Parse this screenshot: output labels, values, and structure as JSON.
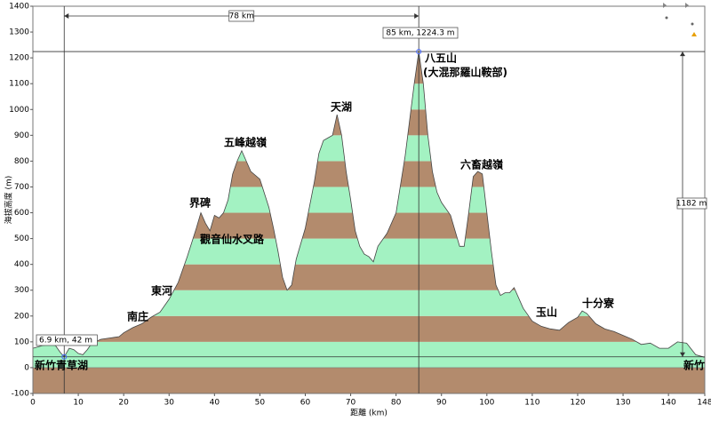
{
  "chart_data": {
    "type": "area",
    "x_label": "距離 (km)",
    "y_label": "海拔高度 (m)",
    "x": [
      0,
      2,
      4,
      5,
      6,
      6.9,
      8,
      9,
      10,
      11,
      12,
      13,
      15,
      17,
      19,
      20,
      22,
      24,
      26,
      28,
      30,
      32,
      34,
      36,
      37,
      38,
      39,
      40,
      41,
      42,
      43,
      44,
      45,
      46,
      47,
      48,
      50,
      52,
      53,
      54,
      55,
      56,
      57,
      58,
      60,
      62,
      63,
      64,
      65,
      66,
      67,
      68,
      69,
      70,
      71,
      72,
      73,
      74,
      75,
      76,
      78,
      80,
      82,
      84,
      85,
      86,
      87,
      88,
      89,
      90,
      92,
      94,
      95,
      96,
      97,
      98,
      99,
      100,
      101,
      102,
      103,
      104,
      105,
      106,
      107,
      108,
      110,
      112,
      114,
      116,
      118,
      120,
      121,
      122,
      124,
      126,
      128,
      130,
      132,
      134,
      136,
      138,
      140,
      142,
      144,
      146,
      148
    ],
    "values": [
      75,
      85,
      90,
      85,
      60,
      42,
      75,
      70,
      55,
      50,
      70,
      95,
      110,
      115,
      120,
      135,
      155,
      170,
      195,
      215,
      265,
      330,
      430,
      540,
      600,
      560,
      530,
      590,
      580,
      600,
      650,
      750,
      800,
      840,
      800,
      760,
      730,
      620,
      540,
      450,
      350,
      300,
      320,
      420,
      540,
      720,
      830,
      880,
      890,
      900,
      980,
      900,
      760,
      650,
      530,
      470,
      440,
      430,
      410,
      470,
      520,
      600,
      820,
      1100,
      1224.3,
      1100,
      900,
      760,
      680,
      640,
      590,
      470,
      470,
      600,
      740,
      760,
      750,
      600,
      450,
      320,
      280,
      290,
      290,
      310,
      270,
      230,
      180,
      160,
      150,
      145,
      175,
      195,
      220,
      210,
      170,
      150,
      140,
      125,
      110,
      90,
      95,
      75,
      75,
      100,
      95,
      50,
      40
    ],
    "xlim": [
      0,
      148
    ],
    "ylim": [
      -100,
      1400
    ],
    "xticks": [
      0,
      10,
      20,
      30,
      40,
      50,
      60,
      70,
      80,
      90,
      100,
      110,
      120,
      130,
      140,
      148
    ],
    "yticks": [
      -100,
      0,
      100,
      200,
      300,
      400,
      500,
      600,
      700,
      800,
      900,
      1000,
      1100,
      1200,
      1300,
      1400
    ],
    "band_step": 100,
    "band_colors": [
      "#a3f2c2",
      "#b38b6d"
    ],
    "line_color": "#444444",
    "markers": [
      {
        "x": 6.9,
        "y": 42,
        "label": "6.9 km, 42 m"
      },
      {
        "x": 85,
        "y": 1224.3,
        "label": "85 km, 1224.3 m"
      }
    ],
    "dimension_labels": [
      "78 km",
      "1182 m"
    ],
    "annotations": [
      "新竹青草湖",
      "南庄",
      "東河",
      "界碑",
      "觀音仙水叉路",
      "五峰越嶺",
      "天湖",
      "八五山",
      "(大混那羅山鞍部)",
      "六畜越嶺",
      "玉山",
      "十分寮",
      "新竹"
    ]
  }
}
